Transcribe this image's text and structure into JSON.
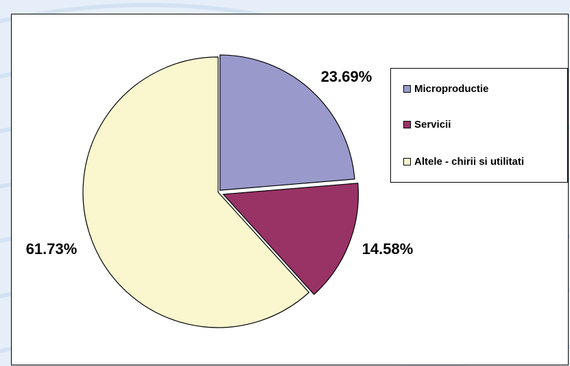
{
  "chart_data": {
    "type": "pie",
    "categories": [
      "Microproductie",
      "Servicii",
      "Altele - chirii si utilitati"
    ],
    "values": [
      23.69,
      14.58,
      61.73
    ],
    "labels": [
      "23.69%",
      "14.58%",
      "61.73%"
    ],
    "colors": [
      "#9999cc",
      "#993366",
      "#faf7cf"
    ],
    "legend_position": "right",
    "exploded": true
  },
  "legend": {
    "items": [
      {
        "label": "Microproductie",
        "color": "#9999cc"
      },
      {
        "label": "Servicii",
        "color": "#993366"
      },
      {
        "label": "Altele - chirii si utilitati",
        "color": "#faf7cf"
      }
    ]
  }
}
